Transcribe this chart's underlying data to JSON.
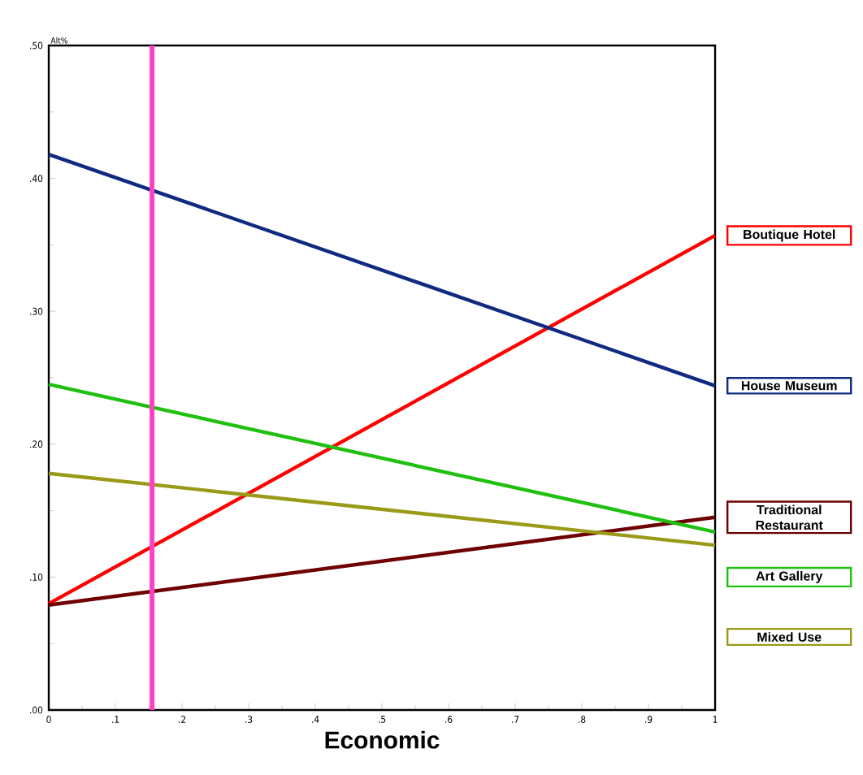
{
  "chart_data": {
    "type": "line",
    "xlabel": "Economic",
    "ylabel": "Alt%",
    "x": [
      0,
      1
    ],
    "series": [
      {
        "name": "Boutique Hotel",
        "color": "#ff0000",
        "values": [
          0.08,
          0.357
        ]
      },
      {
        "name": "House Museum",
        "color": "#102a80",
        "values": [
          0.418,
          0.244
        ]
      },
      {
        "name": "Traditional Restaurant",
        "color": "#6e0000",
        "values": [
          0.079,
          0.145
        ]
      },
      {
        "name": "Art Gallery",
        "color": "#20c010",
        "values": [
          0.245,
          0.134
        ]
      },
      {
        "name": "Mixed Use",
        "color": "#9a9a18",
        "values": [
          0.178,
          0.124
        ]
      }
    ],
    "xlim": [
      0,
      1
    ],
    "ylim": [
      0,
      0.5
    ],
    "xticks": [
      0,
      {
        "value": 0.1,
        "label": ".1"
      },
      {
        "value": 0.2,
        "label": ".2"
      },
      {
        "value": 0.3,
        "label": ".3"
      },
      {
        "value": 0.4,
        "label": ".4"
      },
      {
        "value": 0.5,
        "label": ".5"
      },
      {
        "value": 0.6,
        "label": ".6"
      },
      {
        "value": 0.7,
        "label": ".7"
      },
      {
        "value": 0.8,
        "label": ".8"
      },
      {
        "value": 0.9,
        "label": ".9"
      },
      1
    ],
    "yticks": [
      {
        "value": 0,
        "label": ".00"
      },
      {
        "value": 0.1,
        "label": ".10"
      },
      {
        "value": 0.2,
        "label": ".20"
      },
      {
        "value": 0.3,
        "label": ".30"
      },
      {
        "value": 0.4,
        "label": ".40"
      },
      {
        "value": 0.5,
        "label": ".50"
      }
    ],
    "ref_lines": [
      {
        "axis": "x",
        "value": 0.155,
        "color": "#ff40c0"
      }
    ]
  }
}
